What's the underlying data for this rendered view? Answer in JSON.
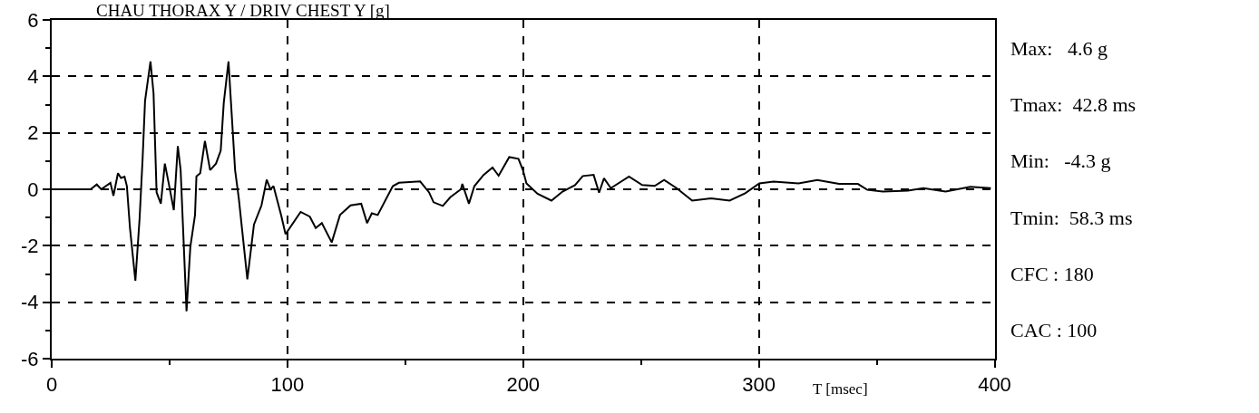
{
  "chart_data": {
    "type": "line",
    "title": "CHAU THORAX Y / DRIV CHEST Y [g]",
    "xlabel": "T [msec]",
    "annotations": [
      "Max:   4.6 g",
      "Tmax:  42.8 ms",
      "Min:   -4.3 g",
      "Tmin:  58.3 ms",
      "CFC : 180",
      "CAC : 100"
    ],
    "xlim": [
      0,
      400
    ],
    "ylim": [
      -6,
      6
    ],
    "xticks": [
      0,
      {
        "value": 50,
        "label": null
      },
      100,
      {
        "value": 150,
        "label": null
      },
      200,
      {
        "value": 250,
        "label": null
      },
      300,
      {
        "value": 350,
        "label": null
      },
      400
    ],
    "yticks": [
      -6,
      {
        "value": -5,
        "label": null
      },
      -4,
      {
        "value": -3,
        "label": null
      },
      -2,
      {
        "value": -1,
        "label": null
      },
      0,
      {
        "value": 1,
        "label": null
      },
      2,
      {
        "value": 3,
        "label": null
      },
      4,
      {
        "value": 5,
        "label": null
      },
      6
    ],
    "grid": true,
    "marker": "none",
    "line_style": "solid",
    "series": [
      {
        "color": "#000000",
        "x": [
          0,
          16.5,
          19.1,
          21,
          24.9,
          26.2,
          28.1,
          29.4,
          30.9,
          31.9,
          33.2,
          35.5,
          37.3,
          38.6,
          39.6,
          41.9,
          43.2,
          44.5,
          46.3,
          48,
          49.6,
          51.8,
          53.5,
          54.7,
          57.2,
          58.8,
          60.8,
          61.4,
          63,
          65,
          67.2,
          69.7,
          71.7,
          73,
          75,
          77.8,
          79.4,
          83,
          85.8,
          89,
          91.2,
          92.8,
          94.1,
          97.3,
          99.2,
          105.6,
          109.5,
          112,
          114.6,
          118.8,
          122.3,
          126.8,
          131.3,
          133.8,
          135.8,
          138.3,
          144.7,
          147.3,
          156.3,
          160.1,
          162,
          165.9,
          169.1,
          173.6,
          174.2,
          177,
          179.3,
          183.2,
          187,
          189.6,
          194.1,
          198,
          199.9,
          201.4,
          206.1,
          212,
          216.7,
          222,
          225.3,
          229.9,
          232.2,
          234.3,
          237.2,
          244.9,
          250.5,
          255.8,
          259.8,
          265.1,
          271.7,
          279.7,
          287.6,
          294.2,
          300.2,
          306.2,
          316.8,
          324.8,
          334,
          342,
          346,
          352.6,
          363.2,
          369.8,
          379.2,
          389.7,
          398.4
        ],
        "values": [
          0,
          0,
          0.17,
          0,
          0.23,
          -0.23,
          0.57,
          0.4,
          0.45,
          0.11,
          -1.37,
          -3.24,
          -1.02,
          1.14,
          3.13,
          4.53,
          3.41,
          -0.11,
          -0.51,
          0.91,
          0.23,
          -0.74,
          1.53,
          0.68,
          -4.32,
          -2.05,
          -0.91,
          0.46,
          0.57,
          1.71,
          0.68,
          0.91,
          1.37,
          3.07,
          4.53,
          0.68,
          -0.34,
          -3.19,
          -1.25,
          -0.57,
          0.34,
          0,
          0.11,
          -0.91,
          -1.59,
          -0.8,
          -0.97,
          -1.37,
          -1.2,
          -1.88,
          -0.91,
          -0.57,
          -0.51,
          -1.2,
          -0.85,
          -0.91,
          0.11,
          0.23,
          0.28,
          -0.11,
          -0.46,
          -0.59,
          -0.28,
          0,
          0.19,
          -0.51,
          0.11,
          0.51,
          0.77,
          0.48,
          1.14,
          1.08,
          0.68,
          0.21,
          -0.16,
          -0.4,
          -0.08,
          0.15,
          0.47,
          0.51,
          -0.12,
          0.39,
          0.04,
          0.45,
          0.15,
          0.12,
          0.33,
          0.04,
          -0.4,
          -0.32,
          -0.4,
          -0.14,
          0.21,
          0.27,
          0.21,
          0.33,
          0.19,
          0.19,
          -0.02,
          -0.08,
          -0.05,
          0.04,
          -0.08,
          0.09,
          0.04
        ]
      }
    ]
  }
}
